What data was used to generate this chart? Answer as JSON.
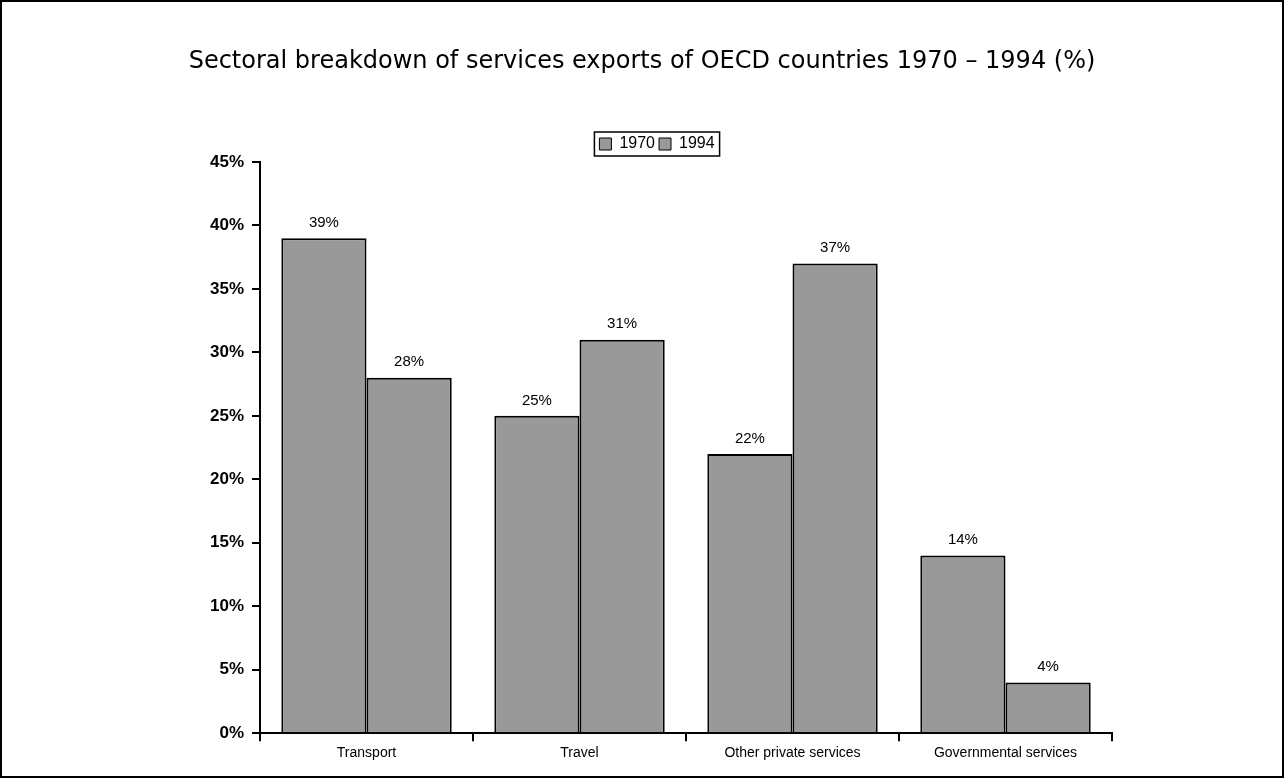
{
  "chart_data": {
    "type": "bar",
    "title": "Sectoral breakdown of services exports of OECD countries 1970 – 1994 (%)",
    "categories": [
      "Transport",
      "Travel",
      "Other private services",
      "Governmental services"
    ],
    "series": [
      {
        "name": "1970",
        "color": "#999999",
        "values": [
          39,
          25,
          22,
          14
        ],
        "value_labels": [
          "39%",
          "25%",
          "22%",
          "14%"
        ]
      },
      {
        "name": "1994",
        "color": "#999999",
        "values": [
          28,
          31,
          37,
          4
        ],
        "value_labels": [
          "28%",
          "31%",
          "37%",
          "4%"
        ]
      }
    ],
    "ylim": [
      0,
      45
    ],
    "yticks": [
      {
        "value": 0,
        "label": "0%"
      },
      {
        "value": 5,
        "label": "5%"
      },
      {
        "value": 10,
        "label": "10%"
      },
      {
        "value": 15,
        "label": "15%"
      },
      {
        "value": 20,
        "label": "20%"
      },
      {
        "value": 25,
        "label": "25%"
      },
      {
        "value": 30,
        "label": "30%"
      },
      {
        "value": 35,
        "label": "35%"
      },
      {
        "value": 40,
        "label": "40%"
      },
      {
        "value": 45,
        "label": "45%"
      }
    ],
    "grid": false,
    "legend": "top"
  }
}
